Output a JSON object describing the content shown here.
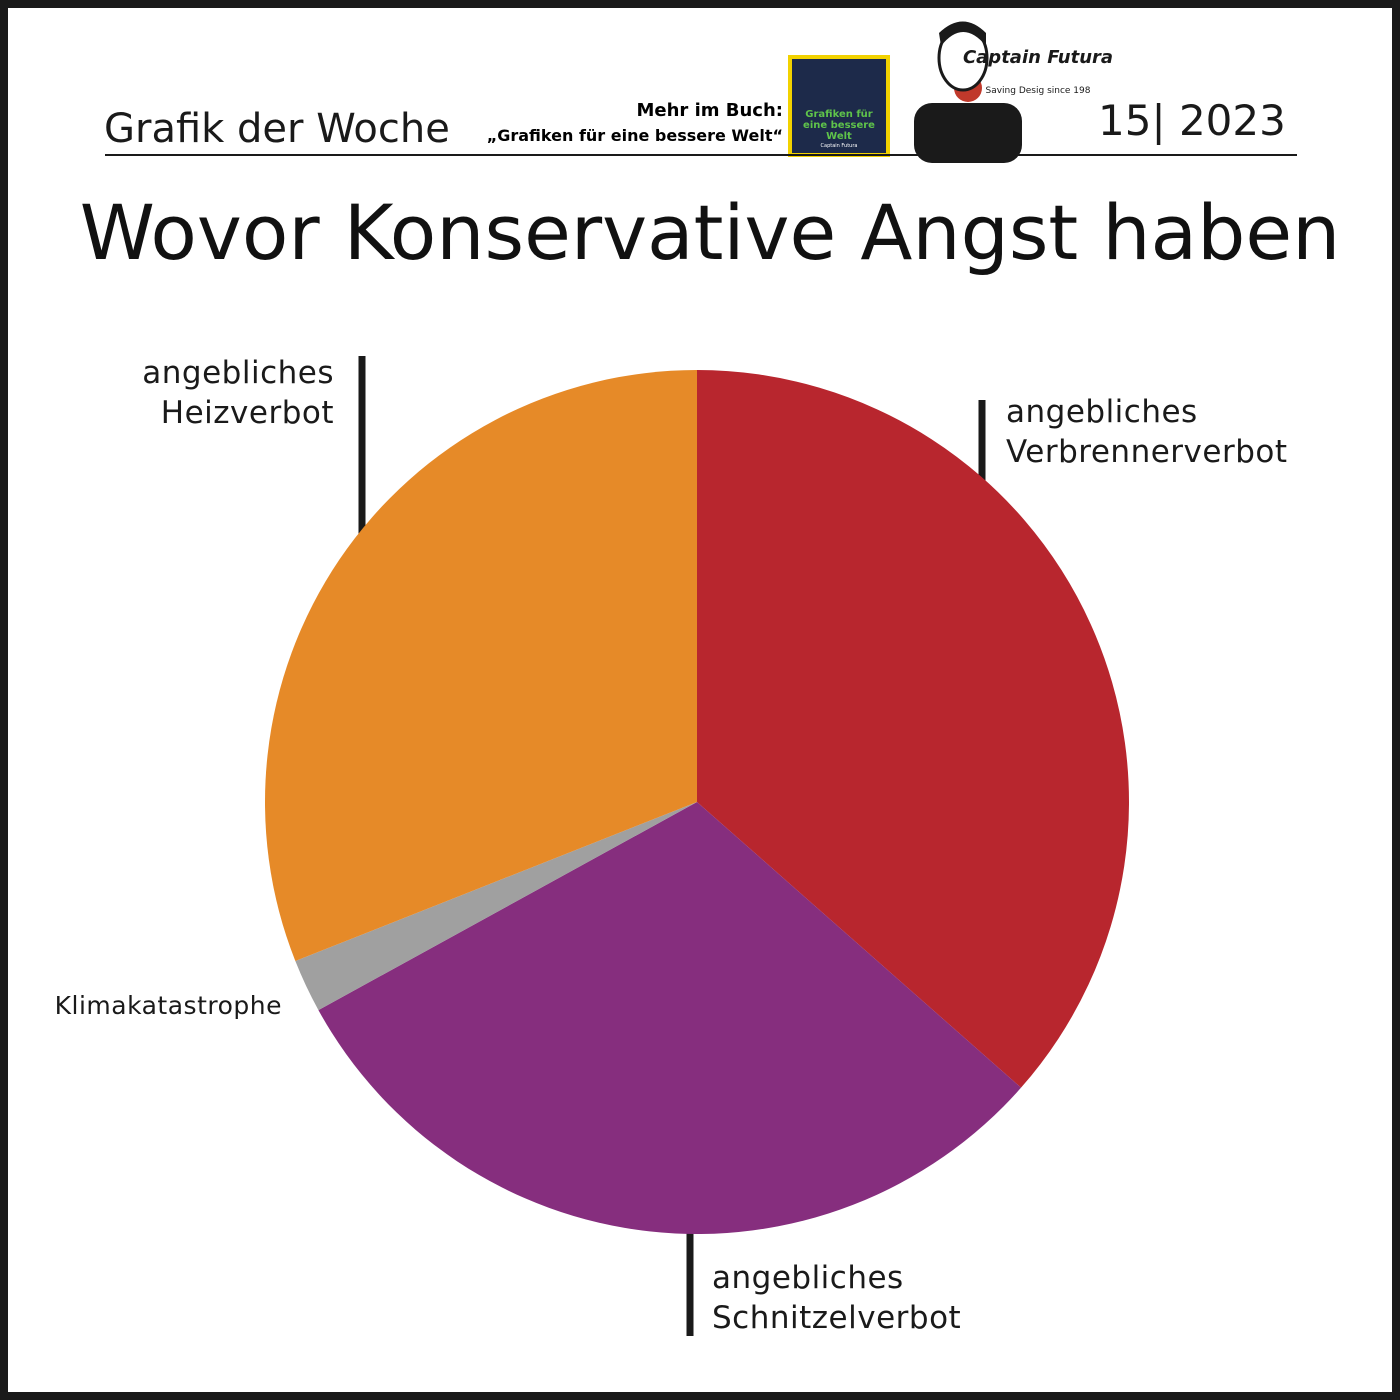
{
  "header": {
    "series_label": "Grafik der Woche",
    "book_prefix": "Mehr im Buch:",
    "book_title": "„Grafiken für eine bessere Welt“",
    "cover_title": "Grafiken für eine bessere Welt",
    "cover_author": "Captain Futura",
    "logo_name": "Captain Futura",
    "logo_tagline": "Saving Desig since 198",
    "issue": "15| 2023"
  },
  "chart_data": {
    "type": "pie",
    "title": "Wovor Konservative Angst haben",
    "categories": [
      "angebliches\nVerbrennerverbot",
      "angebliches\nSchnitzelverbot",
      "Klimakatastrophe",
      "angebliches\nHeizverbot"
    ],
    "values": [
      36.5,
      30.5,
      2,
      31
    ],
    "colors": [
      "#b8262e",
      "#862e7e",
      "#a0a0a0",
      "#e68a28"
    ]
  }
}
